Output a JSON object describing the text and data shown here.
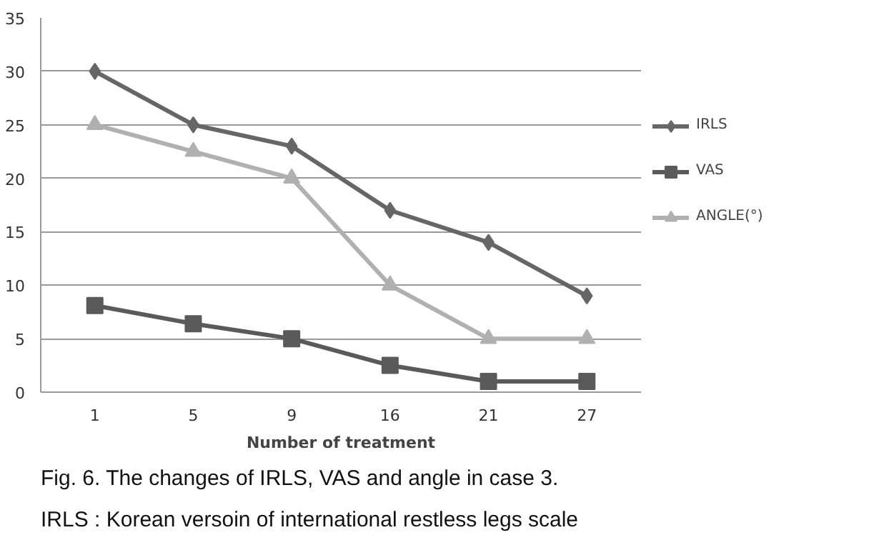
{
  "chart_data": {
    "type": "line",
    "xlabel": "Number of treatment",
    "categories": [
      "1",
      "5",
      "9",
      "16",
      "21",
      "27"
    ],
    "series": [
      {
        "name": "IRLS",
        "color": "#666666",
        "marker": "diamond",
        "values": [
          30,
          25,
          23,
          17,
          14,
          9
        ]
      },
      {
        "name": "VAS",
        "color": "#5a5a5a",
        "marker": "square",
        "values": [
          8.1,
          6.4,
          5,
          2.5,
          1,
          1
        ]
      },
      {
        "name": "ANGLE(°)",
        "color": "#b0b0b0",
        "marker": "triangle",
        "values": [
          25,
          22.5,
          20,
          10,
          5,
          5
        ]
      }
    ],
    "ylim": [
      0,
      35
    ],
    "yticks": [
      0,
      5,
      10,
      15,
      20,
      25,
      30,
      35
    ],
    "grid": "y",
    "legend": "right",
    "annotations": [
      "Fig. 6. The changes of IRLS, VAS and angle in case 3.",
      "IRLS : Korean versoin of international restless legs scale"
    ]
  }
}
